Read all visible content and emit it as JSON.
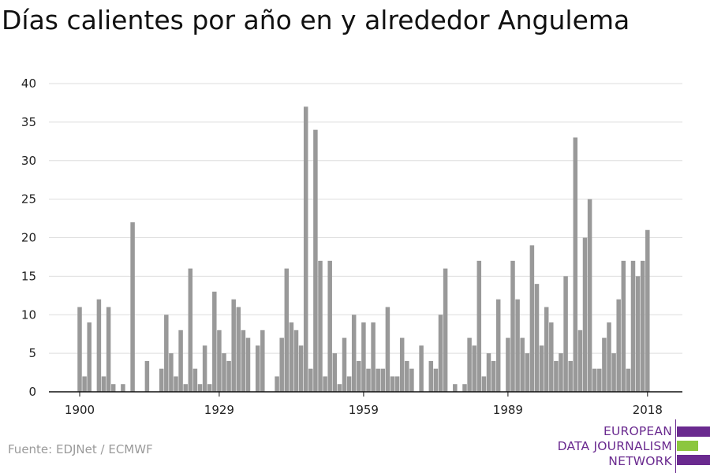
{
  "chart_data": {
    "type": "bar",
    "title": "Días calientes por año en y alrededor Angulema",
    "source": "Fuente: EDJNet / ECMWF",
    "xlabel": "",
    "ylabel": "",
    "ylim": [
      0,
      40
    ],
    "yticks": [
      0,
      5,
      10,
      15,
      20,
      25,
      30,
      35,
      40
    ],
    "xticks": [
      1900,
      1929,
      1959,
      1989,
      2018
    ],
    "xlim": [
      1900,
      2018
    ],
    "grid": true,
    "bar_color": "#999999",
    "x": [
      1900,
      1901,
      1902,
      1903,
      1904,
      1905,
      1906,
      1907,
      1908,
      1909,
      1910,
      1911,
      1912,
      1913,
      1914,
      1915,
      1916,
      1917,
      1918,
      1919,
      1920,
      1921,
      1922,
      1923,
      1924,
      1925,
      1926,
      1927,
      1928,
      1929,
      1930,
      1931,
      1932,
      1933,
      1934,
      1935,
      1936,
      1937,
      1938,
      1939,
      1940,
      1941,
      1942,
      1943,
      1944,
      1945,
      1946,
      1947,
      1948,
      1949,
      1950,
      1951,
      1952,
      1953,
      1954,
      1955,
      1956,
      1957,
      1958,
      1959,
      1960,
      1961,
      1962,
      1963,
      1964,
      1965,
      1966,
      1967,
      1968,
      1969,
      1970,
      1971,
      1972,
      1973,
      1974,
      1975,
      1976,
      1977,
      1978,
      1979,
      1980,
      1981,
      1982,
      1983,
      1984,
      1985,
      1986,
      1987,
      1988,
      1989,
      1990,
      1991,
      1992,
      1993,
      1994,
      1995,
      1996,
      1997,
      1998,
      1999,
      2000,
      2001,
      2002,
      2003,
      2004,
      2005,
      2006,
      2007,
      2008,
      2009,
      2010,
      2011,
      2012,
      2013,
      2014,
      2015,
      2016,
      2017,
      2018
    ],
    "values": [
      11,
      2,
      9,
      0,
      12,
      2,
      11,
      1,
      0,
      1,
      0,
      22,
      0,
      0,
      4,
      0,
      0,
      3,
      10,
      5,
      2,
      8,
      1,
      16,
      3,
      1,
      6,
      1,
      13,
      8,
      5,
      4,
      12,
      11,
      8,
      7,
      0,
      6,
      8,
      0,
      0,
      2,
      7,
      16,
      9,
      8,
      6,
      37,
      3,
      34,
      17,
      2,
      17,
      5,
      1,
      7,
      2,
      10,
      4,
      9,
      3,
      9,
      3,
      3,
      11,
      2,
      2,
      7,
      4,
      3,
      0,
      6,
      0,
      4,
      3,
      10,
      16,
      0,
      1,
      0,
      1,
      7,
      6,
      17,
      2,
      5,
      4,
      12,
      0,
      7,
      17,
      12,
      7,
      5,
      19,
      14,
      6,
      11,
      9,
      4,
      5,
      15,
      4,
      33,
      8,
      20,
      25,
      3,
      3,
      7,
      9,
      5,
      12,
      17,
      3,
      17,
      15,
      17,
      21
    ]
  },
  "logo": {
    "line1": "EUROPEAN",
    "line2": "DATA JOURNALISM",
    "line3": "NETWORK",
    "purple": "#6a2a8f",
    "green": "#8cc63f"
  }
}
